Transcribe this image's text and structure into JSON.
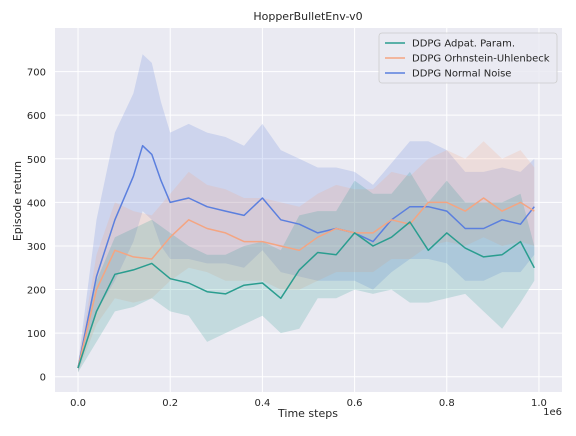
{
  "chart_data": {
    "type": "line",
    "title": "HopperBulletEnv-v0",
    "xlabel": "Time steps",
    "ylabel": "Episode return",
    "x_offset_label": "1e6",
    "xlim": [
      -0.05,
      1.05
    ],
    "ylim": [
      -35,
      800
    ],
    "x_ticks": [
      0.0,
      0.2,
      0.4,
      0.6,
      0.8,
      1.0
    ],
    "x_tick_labels": [
      "0.0",
      "0.2",
      "0.4",
      "0.6",
      "0.8",
      "1.0"
    ],
    "y_ticks": [
      0,
      100,
      200,
      300,
      400,
      500,
      600,
      700
    ],
    "y_tick_labels": [
      "0",
      "100",
      "200",
      "300",
      "400",
      "500",
      "600",
      "700"
    ],
    "grid": true,
    "legend_position": "top-right",
    "series": [
      {
        "name": "DDPG Adpat. Param.",
        "color": "#2a9d8f",
        "x": [
          0.0,
          0.04,
          0.08,
          0.12,
          0.16,
          0.2,
          0.24,
          0.28,
          0.32,
          0.36,
          0.4,
          0.44,
          0.48,
          0.52,
          0.56,
          0.6,
          0.64,
          0.68,
          0.72,
          0.76,
          0.8,
          0.84,
          0.88,
          0.92,
          0.96,
          0.99
        ],
        "y": [
          20,
          150,
          235,
          245,
          260,
          225,
          215,
          195,
          190,
          210,
          215,
          180,
          245,
          285,
          280,
          330,
          300,
          320,
          355,
          290,
          330,
          295,
          275,
          280,
          310,
          250
        ],
        "lower": [
          10,
          80,
          150,
          160,
          180,
          150,
          140,
          80,
          100,
          120,
          140,
          100,
          110,
          180,
          180,
          200,
          190,
          200,
          170,
          170,
          180,
          190,
          150,
          110,
          170,
          220
        ],
        "upper": [
          30,
          220,
          320,
          340,
          360,
          330,
          300,
          280,
          280,
          300,
          310,
          290,
          370,
          380,
          380,
          450,
          420,
          420,
          470,
          400,
          450,
          400,
          400,
          400,
          420,
          300
        ]
      },
      {
        "name": "DDPG Orhnstein-Uhlenbeck",
        "color": "#f4a582",
        "x": [
          0.0,
          0.04,
          0.08,
          0.12,
          0.16,
          0.2,
          0.24,
          0.28,
          0.32,
          0.36,
          0.4,
          0.44,
          0.48,
          0.52,
          0.56,
          0.6,
          0.64,
          0.68,
          0.72,
          0.76,
          0.8,
          0.84,
          0.88,
          0.92,
          0.96,
          0.99
        ],
        "y": [
          20,
          200,
          290,
          275,
          270,
          320,
          360,
          340,
          330,
          310,
          310,
          300,
          290,
          320,
          340,
          330,
          330,
          360,
          350,
          400,
          400,
          380,
          410,
          380,
          400,
          380
        ],
        "lower": [
          10,
          120,
          180,
          170,
          180,
          220,
          250,
          240,
          220,
          220,
          220,
          200,
          200,
          220,
          240,
          240,
          240,
          270,
          270,
          300,
          310,
          300,
          320,
          300,
          310,
          300
        ],
        "upper": [
          30,
          280,
          400,
          380,
          370,
          420,
          470,
          440,
          430,
          410,
          410,
          400,
          390,
          420,
          440,
          430,
          430,
          470,
          460,
          500,
          520,
          500,
          540,
          500,
          520,
          480
        ]
      },
      {
        "name": "DDPG Normal Noise",
        "color": "#5b7fde",
        "x": [
          0.0,
          0.04,
          0.08,
          0.12,
          0.14,
          0.16,
          0.18,
          0.2,
          0.24,
          0.28,
          0.32,
          0.36,
          0.4,
          0.44,
          0.48,
          0.52,
          0.56,
          0.6,
          0.64,
          0.68,
          0.72,
          0.76,
          0.8,
          0.84,
          0.88,
          0.92,
          0.96,
          0.99
        ],
        "y": [
          20,
          230,
          360,
          460,
          530,
          510,
          450,
          400,
          410,
          390,
          380,
          370,
          410,
          360,
          350,
          330,
          340,
          330,
          310,
          360,
          390,
          390,
          380,
          340,
          340,
          360,
          350,
          390
        ],
        "lower": [
          10,
          150,
          220,
          310,
          380,
          360,
          300,
          270,
          270,
          260,
          260,
          250,
          290,
          240,
          230,
          220,
          220,
          220,
          200,
          240,
          270,
          270,
          260,
          220,
          220,
          240,
          240,
          280
        ],
        "upper": [
          30,
          360,
          560,
          650,
          740,
          720,
          630,
          560,
          580,
          560,
          550,
          530,
          580,
          520,
          500,
          480,
          480,
          470,
          440,
          490,
          540,
          540,
          520,
          470,
          470,
          480,
          470,
          500
        ]
      }
    ]
  }
}
